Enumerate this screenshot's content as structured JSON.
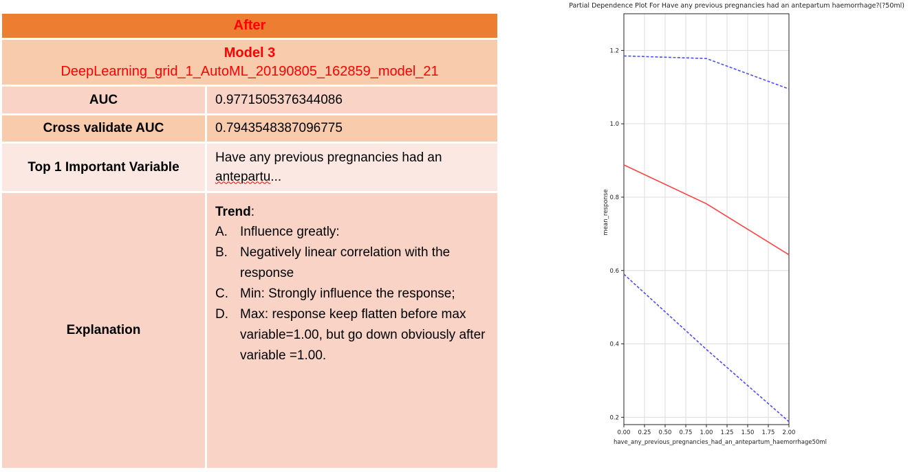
{
  "table": {
    "header": "After",
    "model_title": "Model 3",
    "model_name": "DeepLearning_grid_1_AutoML_20190805_162859_model_21",
    "auc_label": "AUC",
    "auc_value": "0.9771505376344086",
    "cv_auc_label": "Cross validate AUC",
    "cv_auc_value": "0.7943548387096775",
    "top_var_label": "Top 1 Important Variable",
    "top_var_value_1": "Have any previous pregnancies had an",
    "top_var_value_2": "antepartu",
    "top_var_value_3": "...",
    "explanation_label": "Explanation",
    "trend_label": "Trend",
    "trend_colon": ":",
    "items": [
      {
        "letter": "A.",
        "text": "Influence greatly:"
      },
      {
        "letter": "B.",
        "text": "Negatively linear correlation with the response"
      },
      {
        "letter": "C.",
        "text": "Min: Strongly influence the response;"
      },
      {
        "letter": "D.",
        "text": "Max: response keep flatten before max variable=1.00, but go down obviously after variable =1.00."
      }
    ],
    "colors": {
      "header_bg": "#ed7d31",
      "header_text": "#ff0000",
      "row_dark": "#f8cbad",
      "row_light": "#fce8e2"
    }
  },
  "chart_data": {
    "type": "line",
    "title": "Partial Dependence Plot For Have any previous pregnancies had an antepartum haemorrhage?(?50ml)",
    "xlabel": "have_any_previous_pregnancies_had_an_antepartum_haemorrhage50ml",
    "ylabel": "mean_response",
    "xlim": [
      0,
      2
    ],
    "ylim": [
      0.18,
      1.3
    ],
    "xticks": [
      0,
      0.25,
      0.5,
      0.75,
      1,
      1.25,
      1.5,
      1.75,
      2
    ],
    "xtick_labels": [
      "0.00",
      "0.25",
      "0.50",
      "0.75",
      "1.00",
      "1.25",
      "1.50",
      "1.75",
      "2.00"
    ],
    "yticks": [
      0.2,
      0.4,
      0.6,
      0.8,
      1.0,
      1.2
    ],
    "ytick_labels": [
      "0.2",
      "0.4",
      "0.6",
      "0.8",
      "1.0",
      "1.2"
    ],
    "grid": true,
    "series": [
      {
        "style": "upper-band",
        "color": "#4a4aff",
        "dashed": true,
        "x": [
          0,
          1,
          2
        ],
        "y": [
          1.185,
          1.178,
          1.095
        ]
      },
      {
        "style": "mean",
        "color": "#ff4040",
        "dashed": false,
        "x": [
          0,
          1,
          2
        ],
        "y": [
          0.888,
          0.782,
          0.643
        ]
      },
      {
        "style": "lower-band",
        "color": "#4a4aff",
        "dashed": true,
        "x": [
          0,
          1,
          2
        ],
        "y": [
          0.59,
          0.385,
          0.188
        ]
      }
    ]
  }
}
